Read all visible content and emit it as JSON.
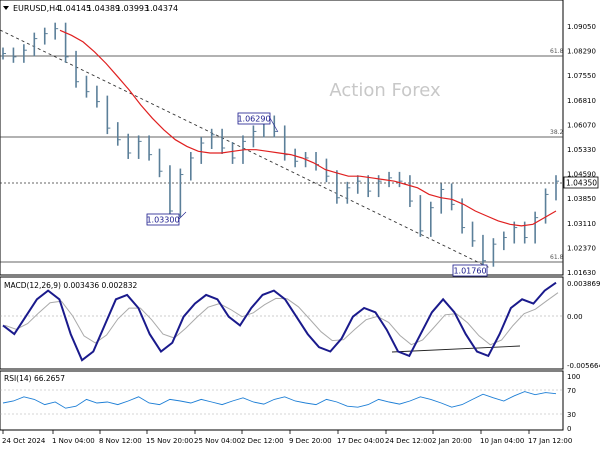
{
  "price_header": {
    "symbol": "EURUSD,H4",
    "open": "1.04145",
    "high": "1.04389",
    "low": "1.03993",
    "close": "1.04374"
  },
  "watermark": "Action Forex",
  "price_axis": [
    "1.09050",
    "1.08290",
    "1.07550",
    "1.06810",
    "1.06070",
    "1.05330",
    "1.04590",
    "1.03850",
    "1.03110",
    "1.02370",
    "1.01630"
  ],
  "current_price": "1.04350",
  "price_annotations": [
    "1.06290",
    "1.03300",
    "1.01760"
  ],
  "fib_levels": [
    "61.8",
    "38.2",
    "61.8"
  ],
  "macd": {
    "label": "MACD(12,26,9) 0.003436 0.002832",
    "axis": [
      "0.003869",
      "0.00",
      "-0.005664"
    ]
  },
  "rsi": {
    "label": "RSI(14) 66.2657",
    "axis": [
      "100",
      "70",
      "30",
      "0"
    ]
  },
  "time_axis": [
    "24 Oct 2024",
    "1 Nov 04:00",
    "8 Nov 12:00",
    "15 Nov 20:00",
    "25 Nov 04:00",
    "2 Dec 12:00",
    "9 Dec 20:00",
    "17 Dec 04:00",
    "24 Dec 12:00",
    "2 Jan 20:00",
    "10 Jan 04:00",
    "17 Jan 12:00"
  ],
  "colors": {
    "candles": "#5b7f99",
    "moving_average": "#e02020",
    "macd_line": "#1a1a8c",
    "signal_line": "#aaaaaa",
    "rsi_line": "#1e7fd6",
    "annotation_border": "#1a1a8c",
    "watermark": "#c8c8c8"
  },
  "chart_data": {
    "type": "line",
    "title": "EURUSD,H4",
    "x_range": [
      "24 Oct 2024",
      "17 Jan 12:00"
    ],
    "series": [
      {
        "name": "EURUSD,H4",
        "values": [
          1.0825,
          1.0815,
          1.0835,
          1.087,
          1.0885,
          1.09,
          1.0815,
          1.074,
          1.071,
          1.068,
          1.06,
          1.0565,
          1.0525,
          1.056,
          1.052,
          1.047,
          1.035,
          1.046,
          1.051,
          1.0555,
          1.058,
          1.054,
          1.051,
          1.056,
          1.059,
          1.062,
          1.059,
          1.052,
          1.05,
          1.051,
          1.049,
          1.0455,
          1.039,
          1.042,
          1.044,
          1.041,
          1.044,
          1.045,
          1.044,
          1.038,
          1.029,
          1.036,
          1.0415,
          1.037,
          1.03,
          1.026,
          1.02,
          1.025,
          1.027,
          1.03,
          1.027,
          1.033,
          1.04,
          1.044
        ]
      },
      {
        "name": "",
        "values": [
          1.0895,
          1.088,
          1.086,
          1.083,
          1.0795,
          1.0755,
          1.0715,
          1.067,
          1.063,
          1.0595,
          1.0565,
          1.0545,
          1.053,
          1.0525,
          1.0525,
          1.053,
          1.0535,
          1.0535,
          1.053,
          1.0525,
          1.052,
          1.051,
          1.0495,
          1.0475,
          1.0465,
          1.0455,
          1.0455,
          1.045,
          1.0445,
          1.044,
          1.043,
          1.042,
          1.04,
          1.039,
          1.0385,
          1.037,
          1.035,
          1.0335,
          1.032,
          1.031,
          1.0305,
          1.031,
          1.033,
          1.035
        ]
      }
    ],
    "annotated_levels": [
      1.0629,
      1.033,
      1.0176
    ],
    "horizontal_levels": [
      1.0825,
      1.0559,
      1.0435,
      1.0192
    ],
    "macd": {
      "values": [
        -0.001,
        -0.002,
        0.0,
        0.002,
        0.003,
        0.002,
        -0.002,
        -0.005,
        -0.004,
        -0.001,
        0.002,
        0.0025,
        0.001,
        -0.002,
        -0.004,
        -0.003,
        0.0,
        0.0015,
        0.0025,
        0.002,
        0.0,
        -0.001,
        0.001,
        0.0025,
        0.003,
        0.002,
        0.0,
        -0.002,
        -0.0035,
        -0.004,
        -0.0025,
        0.0,
        0.001,
        0.0005,
        -0.0015,
        -0.004,
        -0.0045,
        -0.002,
        0.0005,
        0.002,
        0.0005,
        -0.002,
        -0.004,
        -0.0045,
        -0.002,
        0.001,
        0.002,
        0.0015,
        0.003,
        0.0039
      ],
      "ylim": [
        -0.005664,
        0.003869
      ]
    },
    "rsi": {
      "values": [
        48,
        52,
        60,
        55,
        45,
        50,
        38,
        42,
        55,
        48,
        50,
        45,
        52,
        60,
        48,
        45,
        55,
        52,
        48,
        55,
        50,
        45,
        52,
        58,
        50,
        46,
        55,
        60,
        52,
        48,
        45,
        55,
        50,
        42,
        40,
        45,
        55,
        50,
        46,
        52,
        60,
        55,
        48,
        40,
        45,
        55,
        65,
        58,
        52,
        62,
        70,
        64,
        68,
        66
      ],
      "ylim": [
        0,
        100
      ]
    }
  }
}
